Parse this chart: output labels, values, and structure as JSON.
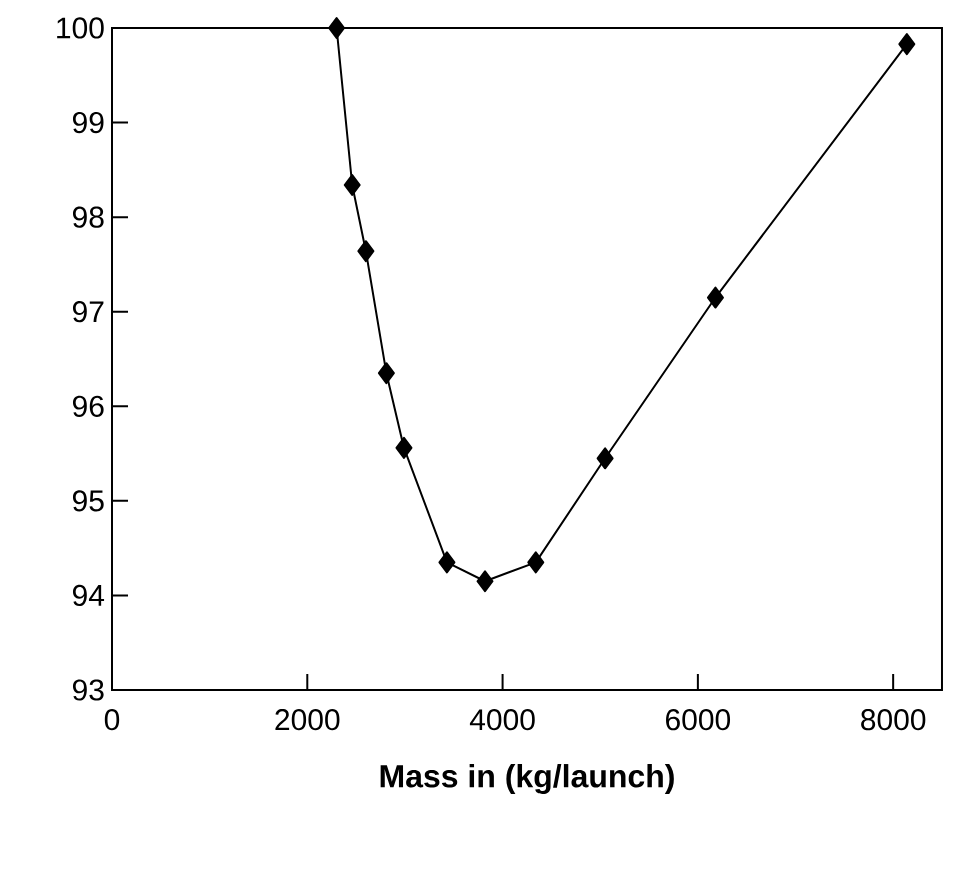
{
  "chart_data": {
    "type": "line",
    "xlabel": "Mass in (kg/launch)",
    "x": [
      2300,
      2460,
      2600,
      2810,
      2990,
      3430,
      3820,
      4340,
      5050,
      6180,
      8140
    ],
    "series": [
      {
        "color": "#000000",
        "values": [
          100.0,
          98.34,
          97.64,
          96.35,
          95.56,
          94.35,
          94.15,
          94.35,
          95.45,
          97.15,
          99.83
        ]
      }
    ],
    "xlim": [
      0,
      8500
    ],
    "ylim": [
      93,
      100
    ],
    "xticks": [
      0,
      2000,
      4000,
      6000,
      8000
    ],
    "yticks": [
      93,
      94,
      95,
      96,
      97,
      98,
      99,
      100
    ],
    "marker": "diamond",
    "line_style": "solid"
  }
}
